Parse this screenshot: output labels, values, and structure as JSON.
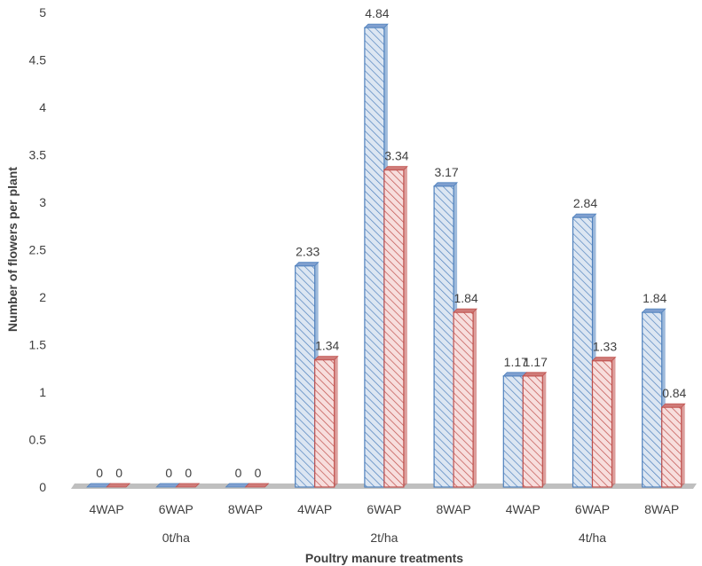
{
  "chart_data": {
    "type": "bar",
    "title": "",
    "xlabel": "Poultry manure treatments",
    "ylabel": "Number of flowers per plant",
    "ylim": [
      0,
      5
    ],
    "yticks": [
      "0",
      "0.5",
      "1",
      "1.5",
      "2",
      "2.5",
      "3",
      "3.5",
      "4",
      "4.5",
      "5"
    ],
    "categories": [
      "4WAP",
      "6WAP",
      "8WAP",
      "4WAP",
      "6WAP",
      "8WAP",
      "4WAP",
      "6WAP",
      "8WAP"
    ],
    "groups": [
      {
        "label": "0t/ha",
        "start": 0,
        "end": 2
      },
      {
        "label": "2t/ha",
        "start": 3,
        "end": 5
      },
      {
        "label": "4t/ha",
        "start": 6,
        "end": 8
      }
    ],
    "series": [
      {
        "values": [
          0,
          0,
          0,
          2.33,
          4.84,
          3.17,
          1.17,
          2.84,
          1.84
        ],
        "labels": [
          "0",
          "0",
          "0",
          "2.33",
          "4.84",
          "3.17",
          "1.17",
          "2.84",
          "1.84"
        ],
        "color": "#4f81bd"
      },
      {
        "values": [
          0,
          0,
          0,
          1.34,
          3.34,
          1.84,
          1.17,
          1.33,
          0.84
        ],
        "labels": [
          "0",
          "0",
          "0",
          "1.34",
          "3.34",
          "1.84",
          "1.17",
          "1.33",
          "0.84"
        ],
        "color": "#c0504d"
      }
    ],
    "grid": false,
    "legend": "none"
  }
}
